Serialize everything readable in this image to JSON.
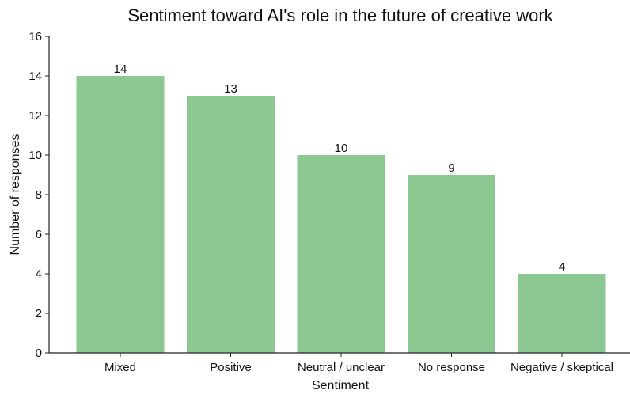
{
  "chart_data": {
    "type": "bar",
    "title": "Sentiment toward AI's role in the future of creative work",
    "xlabel": "Sentiment",
    "ylabel": "Number of responses",
    "categories": [
      "Mixed",
      "Positive",
      "Neutral / unclear",
      "No response",
      "Negative / skeptical"
    ],
    "values": [
      14,
      13,
      10,
      9,
      4
    ],
    "ylim": [
      0,
      16
    ],
    "yticks": [
      0,
      2,
      4,
      6,
      8,
      10,
      12,
      14,
      16
    ],
    "bar_color": "#8cc891",
    "grid": false,
    "data_labels": true
  }
}
